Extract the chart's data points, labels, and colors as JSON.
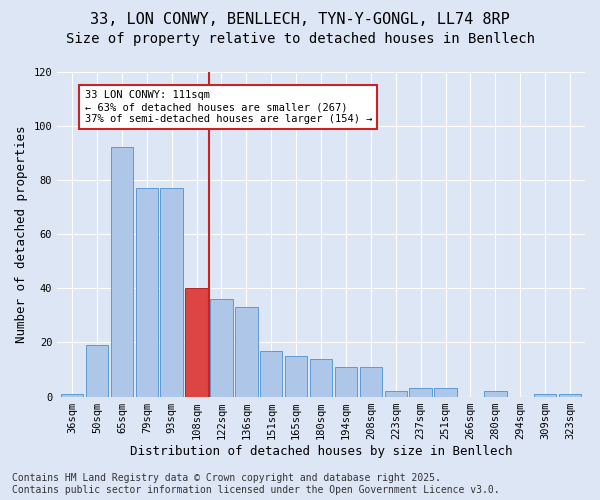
{
  "title1": "33, LON CONWY, BENLLECH, TYN-Y-GONGL, LL74 8RP",
  "title2": "Size of property relative to detached houses in Benllech",
  "xlabel": "Distribution of detached houses by size in Benllech",
  "ylabel": "Number of detached properties",
  "categories": [
    "36sqm",
    "50sqm",
    "65sqm",
    "79sqm",
    "93sqm",
    "108sqm",
    "122sqm",
    "136sqm",
    "151sqm",
    "165sqm",
    "180sqm",
    "194sqm",
    "208sqm",
    "223sqm",
    "237sqm",
    "251sqm",
    "266sqm",
    "280sqm",
    "294sqm",
    "309sqm",
    "323sqm"
  ],
  "values": [
    1,
    19,
    92,
    77,
    77,
    40,
    36,
    33,
    17,
    15,
    14,
    11,
    11,
    2,
    3,
    3,
    0,
    2,
    0,
    1,
    1
  ],
  "bar_color": "#aec6e8",
  "bar_edge_color": "#5b9bd5",
  "highlight_bar_index": 5,
  "highlight_color": "#d44",
  "highlight_edge_color": "#bb2222",
  "vline_color": "#cc2222",
  "annotation_text": "33 LON CONWY: 111sqm\n← 63% of detached houses are smaller (267)\n37% of semi-detached houses are larger (154) →",
  "annotation_box_color": "#ffffff",
  "annotation_box_edge": "#cc2222",
  "ylim": [
    0,
    120
  ],
  "yticks": [
    0,
    20,
    40,
    60,
    80,
    100,
    120
  ],
  "background_color": "#dce6f5",
  "plot_background": "#dce6f5",
  "footer": "Contains HM Land Registry data © Crown copyright and database right 2025.\nContains public sector information licensed under the Open Government Licence v3.0.",
  "footer_fontsize": 7,
  "title_fontsize": 11,
  "subtitle_fontsize": 10,
  "xlabel_fontsize": 9,
  "ylabel_fontsize": 9,
  "tick_fontsize": 7.5
}
